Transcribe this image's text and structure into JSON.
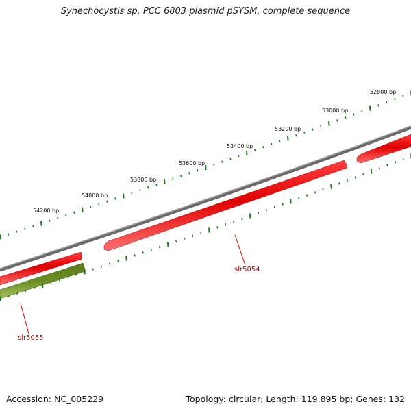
{
  "title": "Synechocystis sp. PCC 6803 plasmid pSYSM, complete sequence",
  "footer": {
    "accession": "Accession: NC_005229",
    "summary": "Topology: circular; Length: 119,895 bp; Genes: 132"
  },
  "colors": {
    "backbone": "#808080",
    "gene_forward": "#e00000",
    "gene_other": "#6b8e23",
    "tick": "#1f7a1f",
    "gene_label": "#cc0000"
  },
  "scale_labels": [
    "52800 bp",
    "53000 bp",
    "53200 bp",
    "53400 bp",
    "53600 bp",
    "53800 bp",
    "54000 bp",
    "54200 bp"
  ],
  "genes": [
    {
      "name": "slr5054",
      "color": "red"
    },
    {
      "name": "slr5055",
      "color": "olive"
    },
    {
      "name": "",
      "color": "red"
    },
    {
      "name": "",
      "color": "red"
    }
  ]
}
